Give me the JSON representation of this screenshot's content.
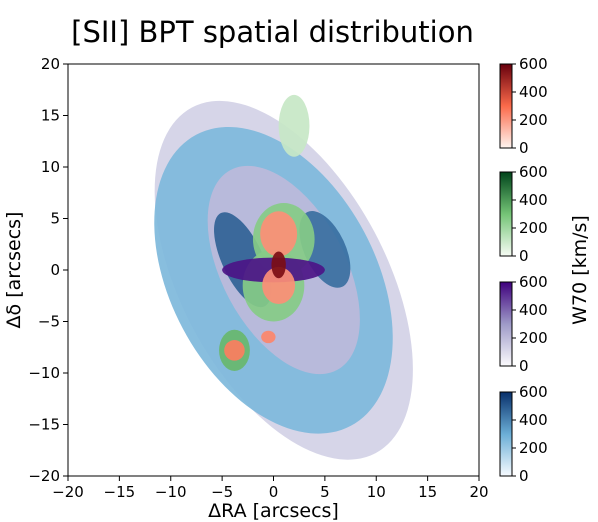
{
  "chart_data": {
    "type": "heatmap",
    "title": "[SII] BPT spatial distribution",
    "xlabel": "ΔRA [arcsecs]",
    "ylabel": "Δδ [arcsecs]",
    "xlim": [
      -20,
      20
    ],
    "ylim": [
      -20,
      20
    ],
    "xticks": [
      -20,
      -15,
      -10,
      -5,
      0,
      5,
      10,
      15,
      20
    ],
    "yticks": [
      -20,
      -15,
      -10,
      -5,
      0,
      5,
      10,
      15,
      20
    ],
    "colorbar_label": "W70 [km/s]",
    "colorbars": [
      {
        "colormap": "Reds",
        "low": "#fff5f0",
        "mid": "#fb6a4a",
        "high": "#67000d",
        "range": [
          0,
          600
        ],
        "ticks": [
          0,
          200,
          400,
          600
        ]
      },
      {
        "colormap": "Greens",
        "low": "#f7fcf5",
        "mid": "#74c476",
        "high": "#00441b",
        "range": [
          0,
          600
        ],
        "ticks": [
          0,
          200,
          400,
          600
        ]
      },
      {
        "colormap": "Purples",
        "low": "#fcfbfd",
        "mid": "#9e9ac8",
        "high": "#3f007d",
        "range": [
          0,
          600
        ],
        "ticks": [
          0,
          200,
          400,
          600
        ]
      },
      {
        "colormap": "Blues",
        "low": "#f7fbff",
        "mid": "#6baed6",
        "high": "#08306b",
        "range": [
          0,
          600
        ],
        "ticks": [
          0,
          200,
          400,
          600
        ]
      }
    ],
    "regions": [
      {
        "colormap": "Purples",
        "shape": "ellipse",
        "center": [
          1,
          -1
        ],
        "semi_axes": [
          10,
          19
        ],
        "angle_deg": -28,
        "w70": 130
      },
      {
        "colormap": "Blues",
        "shape": "ellipse",
        "center": [
          0,
          -1
        ],
        "semi_axes": [
          10,
          16
        ],
        "angle_deg": -28,
        "w70": 260
      },
      {
        "colormap": "Purples",
        "shape": "ellipse",
        "center": [
          1,
          0
        ],
        "semi_axes": [
          6,
          11
        ],
        "angle_deg": -28,
        "w70": 200
      },
      {
        "colormap": "Blues",
        "shape": "ellipse",
        "center": [
          -3,
          1
        ],
        "semi_axes": [
          2,
          5
        ],
        "angle_deg": -25,
        "w70": 480
      },
      {
        "colormap": "Blues",
        "shape": "ellipse",
        "center": [
          5,
          2
        ],
        "semi_axes": [
          2,
          4
        ],
        "angle_deg": -25,
        "w70": 450
      },
      {
        "colormap": "Greens",
        "shape": "ellipse",
        "center": [
          1,
          3
        ],
        "semi_axes": [
          3,
          3.5
        ],
        "angle_deg": 0,
        "w70": 260
      },
      {
        "colormap": "Greens",
        "shape": "ellipse",
        "center": [
          0,
          -1.5
        ],
        "semi_axes": [
          3,
          3.5
        ],
        "angle_deg": 0,
        "w70": 260
      },
      {
        "colormap": "Purples",
        "shape": "ellipse",
        "center": [
          0,
          0
        ],
        "semi_axes": [
          5,
          1.2
        ],
        "angle_deg": 0,
        "w70": 560
      },
      {
        "colormap": "Reds",
        "shape": "ellipse",
        "center": [
          0.5,
          3.5
        ],
        "semi_axes": [
          1.8,
          2.2
        ],
        "angle_deg": 0,
        "w70": 220
      },
      {
        "colormap": "Reds",
        "shape": "ellipse",
        "center": [
          0.5,
          -1.5
        ],
        "semi_axes": [
          1.6,
          1.8
        ],
        "angle_deg": 0,
        "w70": 220
      },
      {
        "colormap": "Reds",
        "shape": "ellipse",
        "center": [
          0.5,
          0.5
        ],
        "semi_axes": [
          0.7,
          1.3
        ],
        "angle_deg": 0,
        "w70": 560
      },
      {
        "colormap": "Greens",
        "shape": "ellipse",
        "center": [
          -3.8,
          -7.8
        ],
        "semi_axes": [
          1.5,
          2
        ],
        "angle_deg": 0,
        "w70": 330
      },
      {
        "colormap": "Reds",
        "shape": "ellipse",
        "center": [
          -3.8,
          -7.8
        ],
        "semi_axes": [
          1,
          1
        ],
        "angle_deg": 0,
        "w70": 260
      },
      {
        "colormap": "Reds",
        "shape": "ellipse",
        "center": [
          -0.5,
          -6.5
        ],
        "semi_axes": [
          0.7,
          0.6
        ],
        "angle_deg": 0,
        "w70": 240
      },
      {
        "colormap": "Greens",
        "shape": "ellipse",
        "center": [
          2,
          14
        ],
        "semi_axes": [
          1.5,
          3
        ],
        "angle_deg": 0,
        "w70": 110
      }
    ]
  }
}
